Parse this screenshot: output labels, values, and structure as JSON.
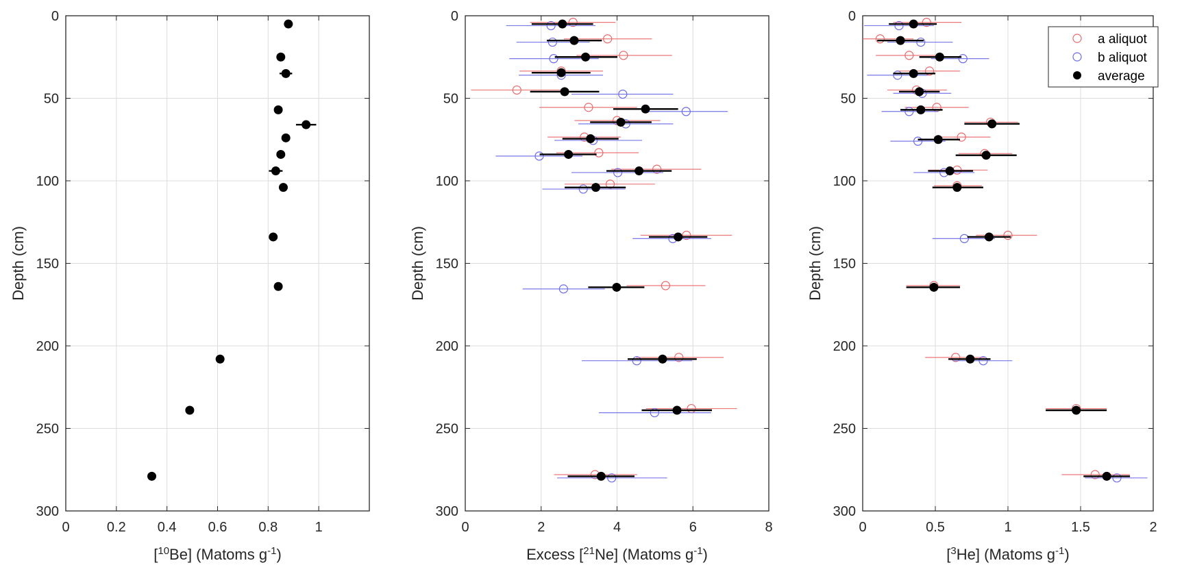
{
  "chart_data": [
    {
      "type": "scatter",
      "id": "be10",
      "title": "",
      "xlabel": {
        "prefix": "[",
        "sup": "10",
        "main": "Be] (Matoms g",
        "sup2": "-1",
        "suffix": ")"
      },
      "ylabel": "Depth (cm)",
      "xlim": [
        0,
        1.2
      ],
      "ylim": [
        0,
        300
      ],
      "y_reversed": true,
      "grid": true,
      "xticks": [
        0,
        0.2,
        0.4,
        0.6,
        0.8,
        1
      ],
      "xtick_labels": [
        "0",
        "0.2",
        "0.4",
        "0.6",
        "0.8",
        "1"
      ],
      "yticks": [
        0,
        50,
        100,
        150,
        200,
        250,
        300
      ],
      "ytick_labels": [
        "0",
        "50",
        "100",
        "150",
        "200",
        "250",
        "300"
      ],
      "series": [
        {
          "name": "average",
          "marker": "filled-circle",
          "color": "#000000",
          "points": [
            {
              "depth": 5,
              "x": 0.88,
              "err": 0.015
            },
            {
              "depth": 25,
              "x": 0.85,
              "err": 0.0
            },
            {
              "depth": 35,
              "x": 0.87,
              "err": 0.025
            },
            {
              "depth": 57,
              "x": 0.84,
              "err": 0.0
            },
            {
              "depth": 66,
              "x": 0.95,
              "err": 0.04
            },
            {
              "depth": 74,
              "x": 0.87,
              "err": 0.0
            },
            {
              "depth": 84,
              "x": 0.85,
              "err": 0.0
            },
            {
              "depth": 94,
              "x": 0.83,
              "err": 0.027
            },
            {
              "depth": 104,
              "x": 0.86,
              "err": 0.0
            },
            {
              "depth": 134,
              "x": 0.82,
              "err": 0.0
            },
            {
              "depth": 164,
              "x": 0.84,
              "err": 0.0
            },
            {
              "depth": 208,
              "x": 0.61,
              "err": 0.0
            },
            {
              "depth": 239,
              "x": 0.49,
              "err": 0.0
            },
            {
              "depth": 279,
              "x": 0.34,
              "err": 0.0
            }
          ]
        }
      ]
    },
    {
      "type": "scatter",
      "id": "ne21",
      "title": "",
      "xlabel": {
        "prefix": "Excess [",
        "sup": "21",
        "main": "Ne] (Matoms g",
        "sup2": "-1",
        "suffix": ")"
      },
      "ylabel": "Depth (cm)",
      "xlim": [
        0,
        8
      ],
      "ylim": [
        0,
        300
      ],
      "y_reversed": true,
      "grid": true,
      "xticks": [
        0,
        2,
        4,
        6,
        8
      ],
      "xtick_labels": [
        "0",
        "2",
        "4",
        "6",
        "8"
      ],
      "yticks": [
        0,
        50,
        100,
        150,
        200,
        250,
        300
      ],
      "ytick_labels": [
        "0",
        "50",
        "100",
        "150",
        "200",
        "250",
        "300"
      ],
      "series": [
        {
          "name": "a aliquot",
          "marker": "open-circle",
          "color": "#e8686a",
          "points": [
            {
              "depth": 4,
              "x": 2.84,
              "lo": 1.71,
              "hi": 3.96
            },
            {
              "depth": 14,
              "x": 3.75,
              "lo": 2.6,
              "hi": 4.92
            },
            {
              "depth": 24,
              "x": 4.17,
              "lo": 2.93,
              "hi": 5.45
            },
            {
              "depth": 33.5,
              "x": 2.53,
              "lo": 1.43,
              "hi": 3.63
            },
            {
              "depth": 45,
              "x": 1.36,
              "lo": 0.15,
              "hi": 2.54
            },
            {
              "depth": 55.5,
              "x": 3.25,
              "lo": 1.95,
              "hi": 4.53
            },
            {
              "depth": 63.5,
              "x": 4.0,
              "lo": 2.88,
              "hi": 5.14
            },
            {
              "depth": 73.5,
              "x": 3.14,
              "lo": 2.17,
              "hi": 4.1
            },
            {
              "depth": 83,
              "x": 3.52,
              "lo": 2.4,
              "hi": 4.57
            },
            {
              "depth": 93,
              "x": 5.05,
              "lo": 3.85,
              "hi": 6.22
            },
            {
              "depth": 102,
              "x": 3.82,
              "lo": 2.62,
              "hi": 5.0
            },
            {
              "depth": 133,
              "x": 5.83,
              "lo": 4.62,
              "hi": 7.03
            },
            {
              "depth": 163.5,
              "x": 5.28,
              "lo": 4.25,
              "hi": 6.33
            },
            {
              "depth": 207,
              "x": 5.63,
              "lo": 4.5,
              "hi": 6.81
            },
            {
              "depth": 238,
              "x": 5.96,
              "lo": 4.76,
              "hi": 7.16
            },
            {
              "depth": 278,
              "x": 3.42,
              "lo": 2.34,
              "hi": 4.53
            }
          ]
        },
        {
          "name": "b aliquot",
          "marker": "open-circle",
          "color": "#6a6ae8",
          "points": [
            {
              "depth": 6,
              "x": 2.26,
              "lo": 1.08,
              "hi": 3.43
            },
            {
              "depth": 16,
              "x": 2.3,
              "lo": 1.35,
              "hi": 3.28
            },
            {
              "depth": 26,
              "x": 2.33,
              "lo": 1.16,
              "hi": 3.52
            },
            {
              "depth": 36,
              "x": 2.53,
              "lo": 1.41,
              "hi": 3.63
            },
            {
              "depth": 47.5,
              "x": 4.15,
              "lo": 2.8,
              "hi": 5.48
            },
            {
              "depth": 58,
              "x": 5.82,
              "lo": 4.76,
              "hi": 6.92
            },
            {
              "depth": 65.5,
              "x": 4.23,
              "lo": 2.98,
              "hi": 5.48
            },
            {
              "depth": 75.5,
              "x": 3.37,
              "lo": 2.35,
              "hi": 4.66
            },
            {
              "depth": 85,
              "x": 1.95,
              "lo": 0.8,
              "hi": 3.09
            },
            {
              "depth": 95,
              "x": 4.02,
              "lo": 2.8,
              "hi": 5.22
            },
            {
              "depth": 105,
              "x": 3.11,
              "lo": 2.03,
              "hi": 4.22
            },
            {
              "depth": 135,
              "x": 5.47,
              "lo": 4.41,
              "hi": 6.48
            },
            {
              "depth": 165.5,
              "x": 2.59,
              "lo": 1.51,
              "hi": 3.68
            },
            {
              "depth": 209,
              "x": 4.52,
              "lo": 3.07,
              "hi": 5.98
            },
            {
              "depth": 240.5,
              "x": 4.99,
              "lo": 3.52,
              "hi": 6.48
            },
            {
              "depth": 280,
              "x": 3.86,
              "lo": 2.42,
              "hi": 5.32
            }
          ]
        },
        {
          "name": "average",
          "marker": "filled-circle",
          "color": "#000000",
          "points": [
            {
              "depth": 5,
              "x": 2.56,
              "lo": 1.75,
              "hi": 3.37
            },
            {
              "depth": 15,
              "x": 2.87,
              "lo": 2.15,
              "hi": 3.6
            },
            {
              "depth": 25,
              "x": 3.17,
              "lo": 2.36,
              "hi": 4.01
            },
            {
              "depth": 34.5,
              "x": 2.53,
              "lo": 1.75,
              "hi": 3.3
            },
            {
              "depth": 46,
              "x": 2.62,
              "lo": 1.71,
              "hi": 3.53
            },
            {
              "depth": 56.5,
              "x": 4.75,
              "lo": 3.9,
              "hi": 5.61
            },
            {
              "depth": 64.5,
              "x": 4.1,
              "lo": 3.29,
              "hi": 4.91
            },
            {
              "depth": 74.5,
              "x": 3.3,
              "lo": 2.56,
              "hi": 4.04
            },
            {
              "depth": 84,
              "x": 2.72,
              "lo": 1.96,
              "hi": 3.46
            },
            {
              "depth": 94,
              "x": 4.58,
              "lo": 3.72,
              "hi": 5.44
            },
            {
              "depth": 104,
              "x": 3.44,
              "lo": 2.62,
              "hi": 4.23
            },
            {
              "depth": 134,
              "x": 5.61,
              "lo": 4.84,
              "hi": 6.38
            },
            {
              "depth": 164.5,
              "x": 3.99,
              "lo": 3.24,
              "hi": 4.72
            },
            {
              "depth": 208,
              "x": 5.2,
              "lo": 4.28,
              "hi": 6.1
            },
            {
              "depth": 239,
              "x": 5.58,
              "lo": 4.65,
              "hi": 6.5
            },
            {
              "depth": 279,
              "x": 3.58,
              "lo": 2.7,
              "hi": 4.46
            }
          ]
        }
      ]
    },
    {
      "type": "scatter",
      "id": "he3",
      "title": "",
      "xlabel": {
        "prefix": "[",
        "sup": "3",
        "main": "He] (Matoms g",
        "sup2": "-1",
        "suffix": ")"
      },
      "ylabel": "Depth (cm)",
      "xlim": [
        0,
        2
      ],
      "ylim": [
        0,
        300
      ],
      "y_reversed": true,
      "grid": true,
      "xticks": [
        0,
        0.5,
        1,
        1.5,
        2
      ],
      "xtick_labels": [
        "0",
        "0.5",
        "1",
        "1.5",
        "2"
      ],
      "yticks": [
        0,
        50,
        100,
        150,
        200,
        250,
        300
      ],
      "ytick_labels": [
        "0",
        "50",
        "100",
        "150",
        "200",
        "250",
        "300"
      ],
      "legend": {
        "position": "top-right",
        "entries": [
          "a aliquot",
          "b aliquot",
          "average"
        ]
      },
      "series": [
        {
          "name": "a aliquot",
          "marker": "open-circle",
          "color": "#e8686a",
          "points": [
            {
              "depth": 4,
              "x": 0.44,
              "lo": 0.21,
              "hi": 0.68
            },
            {
              "depth": 14,
              "x": 0.12,
              "lo": 0.0,
              "hi": 0.35
            },
            {
              "depth": 24,
              "x": 0.32,
              "lo": 0.09,
              "hi": 0.56
            },
            {
              "depth": 33.5,
              "x": 0.46,
              "lo": 0.23,
              "hi": 0.67
            },
            {
              "depth": 45,
              "x": 0.37,
              "lo": 0.17,
              "hi": 0.58
            },
            {
              "depth": 55.5,
              "x": 0.51,
              "lo": 0.29,
              "hi": 0.73
            },
            {
              "depth": 64.5,
              "x": 0.88,
              "lo": 0.7,
              "hi": 1.07
            },
            {
              "depth": 73.5,
              "x": 0.68,
              "lo": 0.49,
              "hi": 0.88
            },
            {
              "depth": 83.5,
              "x": 0.84,
              "lo": 0.66,
              "hi": 1.03
            },
            {
              "depth": 93.5,
              "x": 0.65,
              "lo": 0.45,
              "hi": 0.86
            },
            {
              "depth": 103,
              "x": 0.65,
              "lo": 0.49,
              "hi": 0.82
            },
            {
              "depth": 133,
              "x": 1.0,
              "lo": 0.78,
              "hi": 1.2
            },
            {
              "depth": 163.5,
              "x": 0.49,
              "lo": 0.3,
              "hi": 0.67
            },
            {
              "depth": 207,
              "x": 0.64,
              "lo": 0.43,
              "hi": 0.84
            },
            {
              "depth": 238,
              "x": 1.47,
              "lo": 1.26,
              "hi": 1.68
            },
            {
              "depth": 278,
              "x": 1.6,
              "lo": 1.37,
              "hi": 1.84
            }
          ]
        },
        {
          "name": "b aliquot",
          "marker": "open-circle",
          "color": "#6a6ae8",
          "points": [
            {
              "depth": 6,
              "x": 0.25,
              "lo": 0.01,
              "hi": 0.49
            },
            {
              "depth": 16,
              "x": 0.4,
              "lo": 0.17,
              "hi": 0.62
            },
            {
              "depth": 26,
              "x": 0.69,
              "lo": 0.47,
              "hi": 0.87
            },
            {
              "depth": 36,
              "x": 0.24,
              "lo": 0.03,
              "hi": 0.45
            },
            {
              "depth": 47,
              "x": 0.41,
              "lo": 0.21,
              "hi": 0.61
            },
            {
              "depth": 58,
              "x": 0.32,
              "lo": 0.13,
              "hi": 0.52
            },
            {
              "depth": 76,
              "x": 0.38,
              "lo": 0.19,
              "hi": 0.57
            },
            {
              "depth": 95,
              "x": 0.56,
              "lo": 0.35,
              "hi": 0.77
            },
            {
              "depth": 135,
              "x": 0.7,
              "lo": 0.48,
              "hi": 0.91
            },
            {
              "depth": 209,
              "x": 0.83,
              "lo": 0.62,
              "hi": 1.03
            },
            {
              "depth": 280,
              "x": 1.75,
              "lo": 1.53,
              "hi": 1.96
            }
          ]
        },
        {
          "name": "average",
          "marker": "filled-circle",
          "color": "#000000",
          "points": [
            {
              "depth": 5,
              "x": 0.35,
              "lo": 0.18,
              "hi": 0.51
            },
            {
              "depth": 15,
              "x": 0.26,
              "lo": 0.1,
              "hi": 0.42
            },
            {
              "depth": 25,
              "x": 0.53,
              "lo": 0.39,
              "hi": 0.68
            },
            {
              "depth": 35,
              "x": 0.35,
              "lo": 0.21,
              "hi": 0.5
            },
            {
              "depth": 46,
              "x": 0.39,
              "lo": 0.25,
              "hi": 0.53
            },
            {
              "depth": 57,
              "x": 0.4,
              "lo": 0.26,
              "hi": 0.55
            },
            {
              "depth": 65.5,
              "x": 0.89,
              "lo": 0.7,
              "hi": 1.08
            },
            {
              "depth": 75,
              "x": 0.52,
              "lo": 0.38,
              "hi": 0.67
            },
            {
              "depth": 84.5,
              "x": 0.85,
              "lo": 0.64,
              "hi": 1.06
            },
            {
              "depth": 94,
              "x": 0.6,
              "lo": 0.45,
              "hi": 0.76
            },
            {
              "depth": 104,
              "x": 0.65,
              "lo": 0.48,
              "hi": 0.83
            },
            {
              "depth": 134,
              "x": 0.87,
              "lo": 0.72,
              "hi": 1.02
            },
            {
              "depth": 164.5,
              "x": 0.49,
              "lo": 0.3,
              "hi": 0.67
            },
            {
              "depth": 208,
              "x": 0.74,
              "lo": 0.59,
              "hi": 0.88
            },
            {
              "depth": 239,
              "x": 1.47,
              "lo": 1.26,
              "hi": 1.68
            },
            {
              "depth": 279,
              "x": 1.68,
              "lo": 1.52,
              "hi": 1.84
            }
          ]
        }
      ]
    }
  ]
}
